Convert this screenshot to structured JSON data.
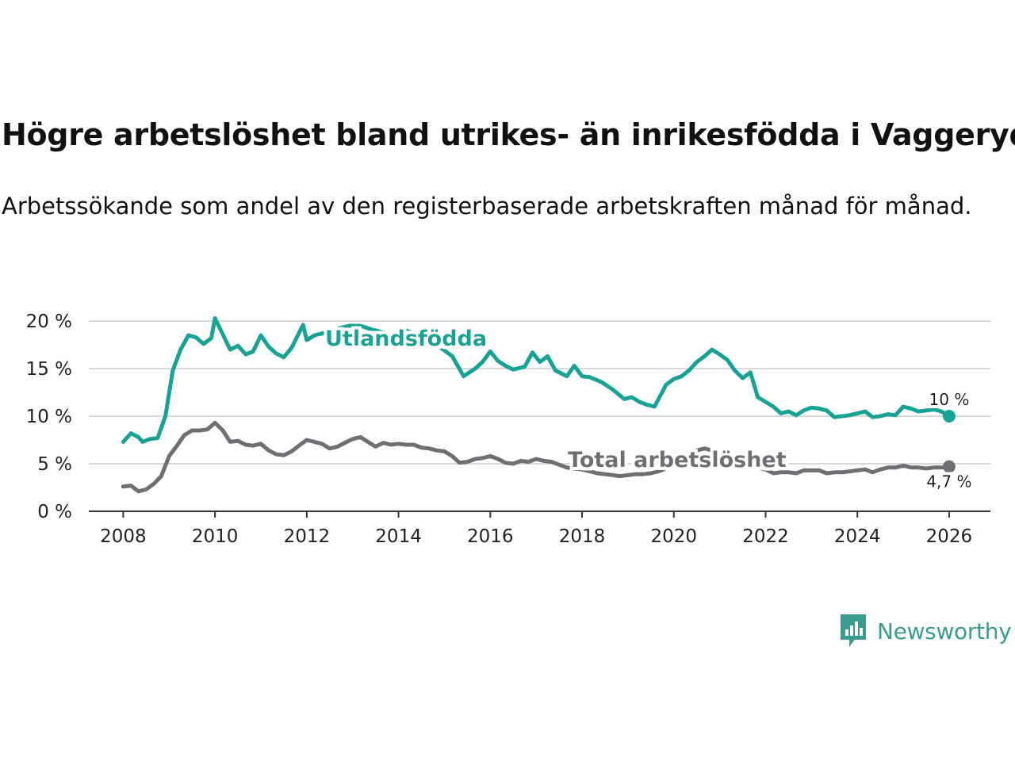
{
  "title": "Högre arbetslöshet bland utrikes- än inrikesfödda i Vaggeryd",
  "subtitle": "Arbetssökande som andel av den registerbaserade arbetskraften månad för månad.",
  "brand": {
    "name": "Newsworthy",
    "icon": "newsworthy-logo-icon",
    "color": "#3b9b8e"
  },
  "chart_data": {
    "type": "line",
    "title": "Högre arbetslöshet bland utrikes- än inrikesfödda i Vaggeryd",
    "xlabel": "",
    "ylabel": "",
    "xlim": [
      2007.25,
      2026.9
    ],
    "ylim": [
      0,
      20
    ],
    "grid": true,
    "x_ticks": [
      2008,
      2010,
      2012,
      2014,
      2016,
      2018,
      2020,
      2022,
      2024,
      2026
    ],
    "x_tick_labels": [
      "2008",
      "2010",
      "2012",
      "2014",
      "2016",
      "2018",
      "2020",
      "2022",
      "2024",
      "2026"
    ],
    "y_ticks": [
      0,
      5,
      10,
      15,
      20
    ],
    "y_tick_labels": [
      "0 %",
      "5 %",
      "10 %",
      "15 %",
      "20 %"
    ],
    "series": [
      {
        "name": "Utlandsfödda",
        "color": "#16a394",
        "end_label": "10 %",
        "points": [
          [
            2008.0,
            7.3
          ],
          [
            2008.17,
            8.2
          ],
          [
            2008.33,
            7.8
          ],
          [
            2008.42,
            7.3
          ],
          [
            2008.58,
            7.6
          ],
          [
            2008.75,
            7.7
          ],
          [
            2008.92,
            10.0
          ],
          [
            2009.08,
            14.8
          ],
          [
            2009.25,
            17.0
          ],
          [
            2009.42,
            18.5
          ],
          [
            2009.58,
            18.3
          ],
          [
            2009.75,
            17.6
          ],
          [
            2009.92,
            18.2
          ],
          [
            2010.0,
            20.3
          ],
          [
            2010.17,
            18.6
          ],
          [
            2010.33,
            17.0
          ],
          [
            2010.5,
            17.4
          ],
          [
            2010.67,
            16.5
          ],
          [
            2010.83,
            16.8
          ],
          [
            2011.0,
            18.5
          ],
          [
            2011.17,
            17.3
          ],
          [
            2011.33,
            16.6
          ],
          [
            2011.5,
            16.2
          ],
          [
            2011.67,
            17.2
          ],
          [
            2011.92,
            19.6
          ],
          [
            2012.0,
            18.0
          ],
          [
            2012.17,
            18.5
          ],
          [
            2012.42,
            18.8
          ],
          [
            2012.67,
            19.2
          ],
          [
            2012.92,
            19.5
          ],
          [
            2013.17,
            19.5
          ],
          [
            2013.42,
            19.1
          ],
          [
            2013.67,
            18.8
          ],
          [
            2013.92,
            18.6
          ],
          [
            2014.17,
            19.0
          ],
          [
            2014.42,
            18.5
          ],
          [
            2014.67,
            17.6
          ],
          [
            2014.92,
            17.2
          ],
          [
            2015.17,
            16.3
          ],
          [
            2015.42,
            14.2
          ],
          [
            2015.67,
            15.0
          ],
          [
            2015.83,
            15.7
          ],
          [
            2016.0,
            16.8
          ],
          [
            2016.17,
            15.8
          ],
          [
            2016.33,
            15.3
          ],
          [
            2016.5,
            14.9
          ],
          [
            2016.75,
            15.2
          ],
          [
            2016.92,
            16.7
          ],
          [
            2017.08,
            15.7
          ],
          [
            2017.25,
            16.3
          ],
          [
            2017.42,
            14.8
          ],
          [
            2017.67,
            14.2
          ],
          [
            2017.83,
            15.3
          ],
          [
            2018.0,
            14.2
          ],
          [
            2018.17,
            14.1
          ],
          [
            2018.42,
            13.6
          ],
          [
            2018.67,
            12.8
          ],
          [
            2018.92,
            11.8
          ],
          [
            2019.08,
            12.0
          ],
          [
            2019.25,
            11.5
          ],
          [
            2019.42,
            11.2
          ],
          [
            2019.58,
            11.0
          ],
          [
            2019.83,
            13.3
          ],
          [
            2020.0,
            13.9
          ],
          [
            2020.17,
            14.2
          ],
          [
            2020.33,
            14.8
          ],
          [
            2020.5,
            15.7
          ],
          [
            2020.67,
            16.3
          ],
          [
            2020.83,
            17.0
          ],
          [
            2021.0,
            16.5
          ],
          [
            2021.17,
            15.9
          ],
          [
            2021.33,
            14.8
          ],
          [
            2021.5,
            14.0
          ],
          [
            2021.67,
            14.6
          ],
          [
            2021.83,
            12.0
          ],
          [
            2022.0,
            11.5
          ],
          [
            2022.17,
            11.0
          ],
          [
            2022.33,
            10.3
          ],
          [
            2022.5,
            10.5
          ],
          [
            2022.67,
            10.1
          ],
          [
            2022.83,
            10.6
          ],
          [
            2023.0,
            10.9
          ],
          [
            2023.17,
            10.8
          ],
          [
            2023.33,
            10.6
          ],
          [
            2023.5,
            9.9
          ],
          [
            2023.67,
            10.0
          ],
          [
            2023.83,
            10.1
          ],
          [
            2024.0,
            10.3
          ],
          [
            2024.17,
            10.5
          ],
          [
            2024.33,
            9.9
          ],
          [
            2024.5,
            10.0
          ],
          [
            2024.67,
            10.2
          ],
          [
            2024.83,
            10.1
          ],
          [
            2025.0,
            11.0
          ],
          [
            2025.17,
            10.8
          ],
          [
            2025.33,
            10.5
          ],
          [
            2025.5,
            10.6
          ],
          [
            2025.67,
            10.7
          ],
          [
            2025.83,
            10.5
          ],
          [
            2026.0,
            10.0
          ]
        ]
      },
      {
        "name": "Total arbetslöshet",
        "color": "#6e6e73",
        "end_label": "4,7 %",
        "points": [
          [
            2008.0,
            2.6
          ],
          [
            2008.17,
            2.7
          ],
          [
            2008.33,
            2.1
          ],
          [
            2008.5,
            2.3
          ],
          [
            2008.67,
            2.9
          ],
          [
            2008.83,
            3.7
          ],
          [
            2009.0,
            5.8
          ],
          [
            2009.17,
            6.9
          ],
          [
            2009.33,
            8.0
          ],
          [
            2009.5,
            8.5
          ],
          [
            2009.67,
            8.5
          ],
          [
            2009.83,
            8.6
          ],
          [
            2010.0,
            9.3
          ],
          [
            2010.17,
            8.5
          ],
          [
            2010.33,
            7.3
          ],
          [
            2010.5,
            7.4
          ],
          [
            2010.67,
            7.0
          ],
          [
            2010.83,
            6.9
          ],
          [
            2011.0,
            7.1
          ],
          [
            2011.17,
            6.4
          ],
          [
            2011.33,
            6.0
          ],
          [
            2011.5,
            5.9
          ],
          [
            2011.67,
            6.3
          ],
          [
            2011.83,
            6.9
          ],
          [
            2012.0,
            7.5
          ],
          [
            2012.17,
            7.3
          ],
          [
            2012.33,
            7.1
          ],
          [
            2012.5,
            6.6
          ],
          [
            2012.67,
            6.8
          ],
          [
            2012.83,
            7.2
          ],
          [
            2013.0,
            7.6
          ],
          [
            2013.17,
            7.8
          ],
          [
            2013.33,
            7.3
          ],
          [
            2013.5,
            6.8
          ],
          [
            2013.67,
            7.2
          ],
          [
            2013.83,
            7.0
          ],
          [
            2014.0,
            7.1
          ],
          [
            2014.17,
            7.0
          ],
          [
            2014.33,
            7.0
          ],
          [
            2014.5,
            6.7
          ],
          [
            2014.67,
            6.6
          ],
          [
            2014.83,
            6.4
          ],
          [
            2015.0,
            6.3
          ],
          [
            2015.17,
            5.8
          ],
          [
            2015.33,
            5.1
          ],
          [
            2015.5,
            5.2
          ],
          [
            2015.67,
            5.5
          ],
          [
            2015.83,
            5.6
          ],
          [
            2016.0,
            5.8
          ],
          [
            2016.17,
            5.5
          ],
          [
            2016.33,
            5.1
          ],
          [
            2016.5,
            5.0
          ],
          [
            2016.67,
            5.3
          ],
          [
            2016.83,
            5.2
          ],
          [
            2017.0,
            5.5
          ],
          [
            2017.17,
            5.3
          ],
          [
            2017.33,
            5.2
          ],
          [
            2017.5,
            4.9
          ],
          [
            2017.67,
            4.6
          ],
          [
            2017.83,
            4.5
          ],
          [
            2018.0,
            4.4
          ],
          [
            2018.17,
            4.2
          ],
          [
            2018.33,
            4.0
          ],
          [
            2018.5,
            3.9
          ],
          [
            2018.67,
            3.8
          ],
          [
            2018.83,
            3.7
          ],
          [
            2019.0,
            3.8
          ],
          [
            2019.17,
            3.9
          ],
          [
            2019.33,
            3.9
          ],
          [
            2019.5,
            4.0
          ],
          [
            2019.67,
            4.2
          ],
          [
            2019.83,
            4.5
          ],
          [
            2020.0,
            5.0
          ],
          [
            2020.17,
            5.6
          ],
          [
            2020.33,
            6.1
          ],
          [
            2020.5,
            6.4
          ],
          [
            2020.67,
            6.6
          ],
          [
            2020.83,
            6.4
          ],
          [
            2021.0,
            6.2
          ],
          [
            2021.17,
            5.8
          ],
          [
            2021.33,
            5.4
          ],
          [
            2021.5,
            5.0
          ],
          [
            2021.67,
            4.8
          ],
          [
            2021.83,
            4.6
          ],
          [
            2022.0,
            4.4
          ],
          [
            2022.17,
            4.0
          ],
          [
            2022.33,
            4.1
          ],
          [
            2022.5,
            4.1
          ],
          [
            2022.67,
            4.0
          ],
          [
            2022.83,
            4.3
          ],
          [
            2023.0,
            4.3
          ],
          [
            2023.17,
            4.3
          ],
          [
            2023.33,
            4.0
          ],
          [
            2023.5,
            4.1
          ],
          [
            2023.67,
            4.1
          ],
          [
            2023.83,
            4.2
          ],
          [
            2024.0,
            4.3
          ],
          [
            2024.17,
            4.4
          ],
          [
            2024.33,
            4.1
          ],
          [
            2024.5,
            4.4
          ],
          [
            2024.67,
            4.6
          ],
          [
            2024.83,
            4.6
          ],
          [
            2025.0,
            4.8
          ],
          [
            2025.17,
            4.6
          ],
          [
            2025.33,
            4.6
          ],
          [
            2025.5,
            4.5
          ],
          [
            2025.67,
            4.6
          ],
          [
            2025.83,
            4.6
          ],
          [
            2026.0,
            4.7
          ]
        ]
      }
    ]
  }
}
